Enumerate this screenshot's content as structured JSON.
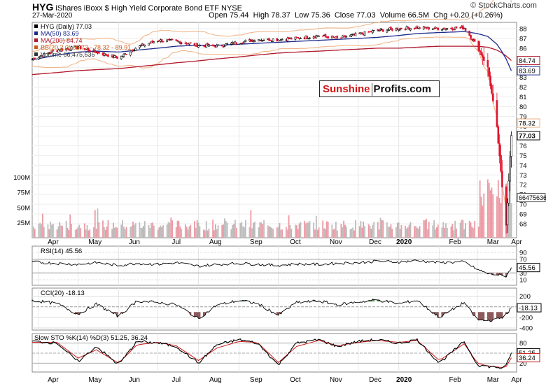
{
  "header": {
    "ticker": "HYG",
    "name": "iShares iBoxx $ High Yield Corporate Bond ETF",
    "exchange": "NYSE",
    "date": "27-Mar-2020",
    "open": "Open 75.44",
    "high": "High 78.37",
    "low": "Low 75.36",
    "close": "Close 77.03",
    "volume": "Volume 66.5M",
    "change": "Chg +0.20 (+0.26%)",
    "change_color": "#008800",
    "watermark": "© StockCharts.com"
  },
  "logo": {
    "part1": "Sunshine",
    "part2": "Profits.com"
  },
  "legend": [
    {
      "text": "HYG (Daily) 77.03",
      "color": "#000000",
      "icon": "candle-icon"
    },
    {
      "text": "MA(50) 83.69",
      "color": "#1c2a8c",
      "icon": "line-icon"
    },
    {
      "text": "MA(200) 84.74",
      "color": "#b0182c",
      "icon": "line-icon"
    },
    {
      "text": "BB(20,2.0) 66.73 - 78.32 - 89.91",
      "color": "#cc5a12",
      "icon": "line-icon"
    },
    {
      "text": "Volume 66,475,636",
      "color": "#333333",
      "icon": "volume-bars-icon"
    }
  ],
  "colors": {
    "up": "#000000",
    "down": "#e0142c",
    "ma50": "#1c2a8c",
    "ma200": "#b0182c",
    "bb": "#f0b080",
    "vol_up": "#bdbdbd",
    "vol_down": "#ec9aa4",
    "osc_pos": "#5a8c5a",
    "osc_neg": "#8c5a5a"
  },
  "x_labels": [
    "Apr",
    "May",
    "Jun",
    "Jul",
    "Aug",
    "Sep",
    "Oct",
    "Nov",
    "Dec",
    "2020",
    "Feb",
    "Mar",
    "Apr"
  ],
  "chart_data": [
    {
      "type": "line",
      "panel": "price",
      "x": [
        "2019-03-27",
        "2019-04-15",
        "2019-05-01",
        "2019-05-15",
        "2019-06-01",
        "2019-06-15",
        "2019-07-01",
        "2019-07-15",
        "2019-08-01",
        "2019-08-15",
        "2019-09-01",
        "2019-09-15",
        "2019-10-01",
        "2019-10-15",
        "2019-11-01",
        "2019-11-15",
        "2019-12-01",
        "2019-12-15",
        "2020-01-01",
        "2020-01-15",
        "2020-02-01",
        "2020-02-20",
        "2020-03-01",
        "2020-03-09",
        "2020-03-16",
        "2020-03-20",
        "2020-03-23",
        "2020-03-27"
      ],
      "series": [
        {
          "name": "HYG (Daily)",
          "values": [
            84.9,
            85.8,
            86.1,
            85.6,
            85.0,
            86.1,
            86.8,
            86.7,
            86.3,
            86.2,
            86.6,
            86.9,
            86.9,
            87.0,
            87.3,
            87.0,
            87.4,
            87.8,
            88.0,
            88.1,
            88.0,
            88.1,
            86.2,
            84.0,
            77.8,
            71.8,
            68.0,
            77.03
          ]
        },
        {
          "name": "MA(50)",
          "values": [
            84.8,
            85.3,
            85.6,
            85.7,
            85.6,
            85.8,
            86.0,
            86.2,
            86.3,
            86.3,
            86.4,
            86.5,
            86.6,
            86.7,
            86.8,
            86.9,
            87.0,
            87.1,
            87.3,
            87.5,
            87.6,
            87.7,
            87.5,
            87.2,
            86.4,
            85.6,
            84.9,
            83.69
          ]
        },
        {
          "name": "MA(200)",
          "values": [
            83.3,
            83.5,
            83.7,
            83.8,
            83.9,
            84.1,
            84.3,
            84.5,
            84.7,
            84.9,
            85.1,
            85.3,
            85.5,
            85.6,
            85.7,
            85.8,
            85.9,
            86.0,
            86.0,
            86.1,
            86.2,
            86.2,
            86.2,
            86.1,
            85.8,
            85.5,
            85.2,
            84.74
          ]
        }
      ],
      "ylim": [
        67,
        88.5
      ],
      "y_ticks": [
        68,
        69,
        70,
        71,
        72,
        73,
        74,
        75,
        76,
        77,
        78,
        79,
        80,
        81,
        82,
        83,
        84,
        85,
        86,
        87,
        88
      ],
      "value_tags": [
        {
          "text": "84.74",
          "value": 84.74
        },
        {
          "text": "83.69",
          "value": 83.69
        },
        {
          "text": "78.32",
          "value": 78.32
        },
        {
          "text": "77.03",
          "value": 77.03
        }
      ],
      "volume": {
        "ticks": [
          "100M",
          "75M",
          "50M",
          "25M"
        ],
        "tag": "66475636",
        "peak": "2020-03-19"
      }
    },
    {
      "type": "line",
      "panel": "RSI",
      "label": "RSI(14) 45.56",
      "values": [
        62,
        58,
        55,
        60,
        52,
        58,
        55,
        60,
        50,
        55,
        58,
        55,
        52,
        56,
        55,
        58,
        60,
        64,
        62,
        66,
        60,
        62,
        40,
        28,
        25,
        22,
        21,
        45.56
      ],
      "ylim": [
        0,
        100
      ],
      "y_ticks": [
        90,
        70,
        30,
        10
      ],
      "tag": "45.56"
    },
    {
      "type": "line",
      "panel": "CCI",
      "label": "CCI(20) -18.13",
      "values": [
        120,
        60,
        -140,
        50,
        -180,
        110,
        80,
        40,
        -220,
        30,
        120,
        60,
        -160,
        80,
        110,
        40,
        90,
        130,
        60,
        120,
        -200,
        80,
        -250,
        -260,
        -240,
        -190,
        -150,
        -18.13
      ],
      "ylim": [
        -400,
        300
      ],
      "y_ticks": [
        200,
        0,
        -200,
        -400
      ],
      "tag": "-18.13"
    },
    {
      "type": "line",
      "panel": "Slow STO",
      "label": "Slow STO %K(14) %D(3) 51.25, 36.24",
      "series": [
        {
          "name": "%K",
          "values": [
            85,
            80,
            25,
            70,
            15,
            85,
            80,
            70,
            20,
            75,
            90,
            80,
            15,
            80,
            90,
            70,
            85,
            90,
            80,
            90,
            20,
            85,
            15,
            10,
            8,
            5,
            12,
            51.25
          ]
        },
        {
          "name": "%D",
          "values": [
            82,
            82,
            35,
            60,
            20,
            75,
            82,
            72,
            28,
            65,
            85,
            82,
            22,
            70,
            88,
            72,
            82,
            88,
            82,
            88,
            28,
            78,
            20,
            12,
            9,
            7,
            10,
            36.24
          ]
        }
      ],
      "ylim": [
        0,
        100
      ],
      "y_ticks": [
        80,
        50,
        20
      ],
      "tags": [
        "51.25",
        "36.24"
      ]
    }
  ]
}
